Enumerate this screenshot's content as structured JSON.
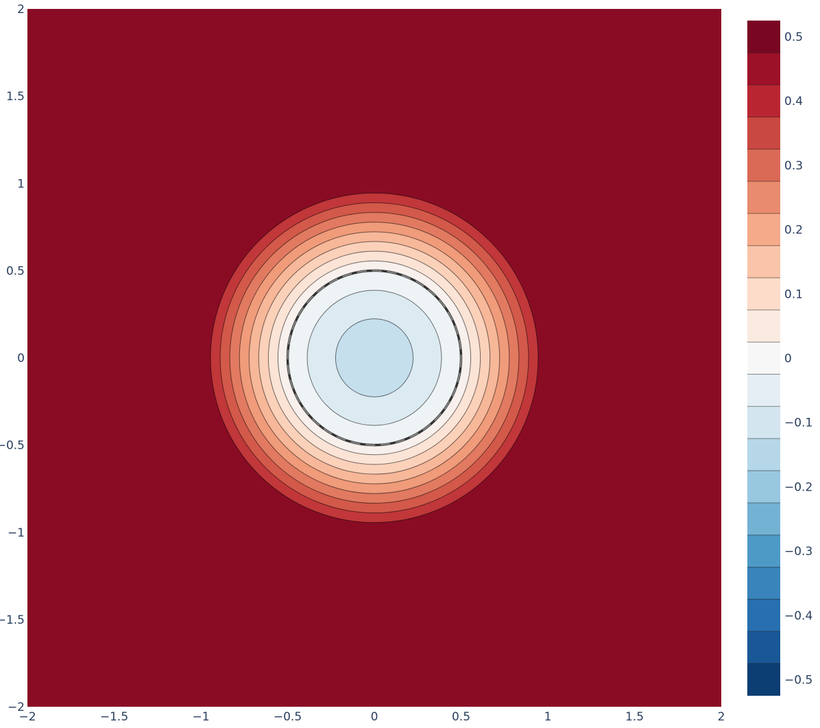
{
  "chart_data": {
    "type": "contour",
    "title": "",
    "xlabel": "",
    "ylabel": "",
    "xlim": [
      -2,
      2
    ],
    "ylim": [
      -2,
      2
    ],
    "x_ticks": [
      "−2",
      "−1.5",
      "−1",
      "−0.5",
      "0",
      "0.5",
      "1",
      "1.5",
      "2"
    ],
    "x_tick_values": [
      -2,
      -1.5,
      -1,
      -0.5,
      0,
      0.5,
      1,
      1.5,
      2
    ],
    "y_ticks": [
      "−2",
      "−1.5",
      "−1",
      "−0.5",
      "0",
      "0.5",
      "1",
      "1.5",
      "2"
    ],
    "y_tick_values": [
      -2,
      -1.5,
      -1,
      -0.5,
      0,
      0.5,
      1,
      1.5,
      2
    ],
    "grid": false,
    "colorscale": "RdBu (reversed)",
    "colors": {
      "min": "#053061",
      "max": "#67001f",
      "outside_fill": "#8a0c24",
      "highlight_contour": "#333333",
      "tick_text": "#2a3f5f"
    },
    "z_range": [
      -0.525,
      0.525
    ],
    "contour_step": 0.05,
    "center_value": -0.125,
    "saturation_value": 0.45,
    "saturation_radius": 1.0,
    "highlight_contour_value": 0,
    "highlight_contour_radius": 0.5,
    "description_data": "radially symmetric field centred at (0,0); value rises from about −0.125 at the centre through 0 at radius 0.5 to 0.45 at radius 1, constant beyond",
    "colorbar": {
      "tick_values": [
        0.5,
        0.4,
        0.3,
        0.2,
        0.1,
        0,
        -0.1,
        -0.2,
        -0.3,
        -0.4,
        -0.5
      ],
      "tick_labels": [
        "0.5",
        "0.4",
        "0.3",
        "0.2",
        "0.1",
        "0",
        "−0.1",
        "−0.2",
        "−0.3",
        "−0.4",
        "−0.5"
      ],
      "range": [
        -0.525,
        0.525
      ]
    }
  }
}
